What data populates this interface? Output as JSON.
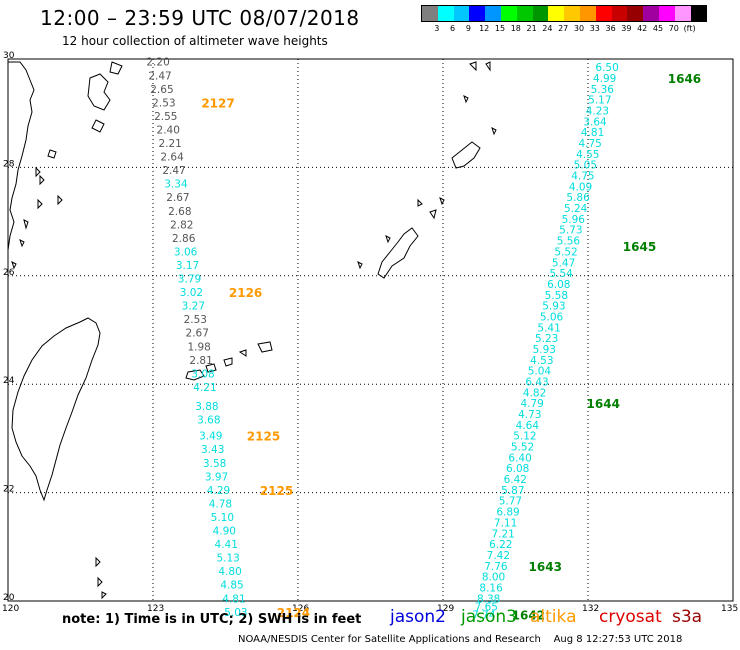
{
  "title": "12:00 – 23:59 UTC 08/07/2018",
  "subtitle": "12 hour collection of altimeter wave heights",
  "legend": {
    "unit": "(ft)",
    "colors": [
      "#7f7f7f",
      "#00ffff",
      "#00c8ff",
      "#0000ff",
      "#0096ff",
      "#00ff00",
      "#00c800",
      "#009600",
      "#ffff00",
      "#ffc800",
      "#ff9600",
      "#ff0000",
      "#c80000",
      "#960000",
      "#a000a0",
      "#ff00ff",
      "#ff96ff",
      "#000000"
    ],
    "ticks": [
      "3",
      "6",
      "9",
      "12",
      "15",
      "18",
      "21",
      "24",
      "27",
      "30",
      "33",
      "36",
      "39",
      "42",
      "45",
      "70"
    ]
  },
  "axes": {
    "lon_ticks": [
      "120",
      "123",
      "126",
      "129",
      "132",
      "135"
    ],
    "lat_ticks": [
      "30",
      "28",
      "26",
      "24",
      "22",
      "20"
    ]
  },
  "colors": {
    "gray": "#555555",
    "cyan": "#00dddd",
    "orange": "#ff9900",
    "green": "#007f00"
  },
  "track_a": {
    "points": [
      {
        "lon": 123.07,
        "lat": 29.95,
        "v": "2.20",
        "c": "gray"
      },
      {
        "lon": 123.11,
        "lat": 29.7,
        "v": "2.47",
        "c": "gray"
      },
      {
        "lon": 123.15,
        "lat": 29.45,
        "v": "2.65",
        "c": "gray"
      },
      {
        "lon": 123.19,
        "lat": 29.2,
        "v": "2.53",
        "c": "gray"
      },
      {
        "lon": 123.23,
        "lat": 28.95,
        "v": "2.55",
        "c": "gray"
      },
      {
        "lon": 123.28,
        "lat": 28.7,
        "v": "2.40",
        "c": "gray"
      },
      {
        "lon": 123.32,
        "lat": 28.45,
        "v": "2.21",
        "c": "gray"
      },
      {
        "lon": 123.36,
        "lat": 28.2,
        "v": "2.64",
        "c": "gray"
      },
      {
        "lon": 123.4,
        "lat": 27.95,
        "v": "2.47",
        "c": "gray"
      },
      {
        "lon": 123.44,
        "lat": 27.7,
        "v": "3.34",
        "c": "cyan"
      },
      {
        "lon": 123.48,
        "lat": 27.45,
        "v": "2.67",
        "c": "gray"
      },
      {
        "lon": 123.52,
        "lat": 27.2,
        "v": "2.68",
        "c": "gray"
      },
      {
        "lon": 123.56,
        "lat": 26.95,
        "v": "2.82",
        "c": "gray"
      },
      {
        "lon": 123.6,
        "lat": 26.7,
        "v": "2.86",
        "c": "gray"
      },
      {
        "lon": 123.64,
        "lat": 26.45,
        "v": "3.06",
        "c": "cyan"
      },
      {
        "lon": 123.68,
        "lat": 26.2,
        "v": "3.17",
        "c": "cyan"
      },
      {
        "lon": 123.72,
        "lat": 25.95,
        "v": "3.79",
        "c": "cyan"
      },
      {
        "lon": 123.76,
        "lat": 25.7,
        "v": "3.02",
        "c": "cyan"
      },
      {
        "lon": 123.8,
        "lat": 25.45,
        "v": "3.27",
        "c": "cyan"
      },
      {
        "lon": 123.84,
        "lat": 25.2,
        "v": "2.53",
        "c": "gray"
      },
      {
        "lon": 123.88,
        "lat": 24.95,
        "v": "2.67",
        "c": "gray"
      },
      {
        "lon": 123.92,
        "lat": 24.7,
        "v": "1.98",
        "c": "gray"
      },
      {
        "lon": 123.96,
        "lat": 24.45,
        "v": "2.81",
        "c": "gray"
      },
      {
        "lon": 124.0,
        "lat": 24.2,
        "v": "3.08",
        "c": "cyan"
      },
      {
        "lon": 124.04,
        "lat": 23.95,
        "v": "4.21",
        "c": "cyan"
      },
      {
        "lon": 124.08,
        "lat": 23.6,
        "v": "3.88",
        "c": "cyan"
      },
      {
        "lon": 124.12,
        "lat": 23.35,
        "v": "3.68",
        "c": "cyan"
      },
      {
        "lon": 124.16,
        "lat": 23.05,
        "v": "3.49",
        "c": "cyan"
      },
      {
        "lon": 124.2,
        "lat": 22.8,
        "v": "3.43",
        "c": "cyan"
      },
      {
        "lon": 124.24,
        "lat": 22.55,
        "v": "3.58",
        "c": "cyan"
      },
      {
        "lon": 124.28,
        "lat": 22.3,
        "v": "3.97",
        "c": "cyan"
      },
      {
        "lon": 124.32,
        "lat": 22.05,
        "v": "4.29",
        "c": "cyan"
      },
      {
        "lon": 124.36,
        "lat": 21.8,
        "v": "4.78",
        "c": "cyan"
      },
      {
        "lon": 124.4,
        "lat": 21.55,
        "v": "5.10",
        "c": "cyan"
      },
      {
        "lon": 124.44,
        "lat": 21.3,
        "v": "4.90",
        "c": "cyan"
      },
      {
        "lon": 124.48,
        "lat": 21.05,
        "v": "4.41",
        "c": "cyan"
      },
      {
        "lon": 124.52,
        "lat": 20.8,
        "v": "5.13",
        "c": "cyan"
      },
      {
        "lon": 124.56,
        "lat": 20.55,
        "v": "4.80",
        "c": "cyan"
      },
      {
        "lon": 124.6,
        "lat": 20.3,
        "v": "4.85",
        "c": "cyan"
      },
      {
        "lon": 124.64,
        "lat": 20.05,
        "v": "4.81",
        "c": "cyan"
      },
      {
        "lon": 124.68,
        "lat": 19.8,
        "v": "5.03",
        "c": "cyan"
      }
    ],
    "times": [
      {
        "lon": 124.0,
        "lat": 29.2,
        "t": "2127"
      },
      {
        "lon": 124.57,
        "lat": 25.7,
        "t": "2126"
      },
      {
        "lon": 124.94,
        "lat": 23.05,
        "t": "2125"
      },
      {
        "lon": 125.21,
        "lat": 22.05,
        "t": "2125"
      },
      {
        "lon": 125.56,
        "lat": 19.8,
        "t": "2124"
      }
    ]
  },
  "track_b": {
    "points": [
      {
        "lon": 132.36,
        "lat": 29.85,
        "v": "6.50"
      },
      {
        "lon": 132.31,
        "lat": 29.65,
        "v": "4.99"
      },
      {
        "lon": 132.26,
        "lat": 29.45,
        "v": "5.36"
      },
      {
        "lon": 132.21,
        "lat": 29.25,
        "v": "5.17"
      },
      {
        "lon": 132.16,
        "lat": 29.05,
        "v": "4.23"
      },
      {
        "lon": 132.11,
        "lat": 28.85,
        "v": "3.64"
      },
      {
        "lon": 132.06,
        "lat": 28.65,
        "v": "4.81"
      },
      {
        "lon": 132.01,
        "lat": 28.45,
        "v": "4.75"
      },
      {
        "lon": 131.96,
        "lat": 28.25,
        "v": "4.55"
      },
      {
        "lon": 131.91,
        "lat": 28.05,
        "v": "5.05"
      },
      {
        "lon": 131.86,
        "lat": 27.85,
        "v": "4.75"
      },
      {
        "lon": 131.81,
        "lat": 27.65,
        "v": "4.09"
      },
      {
        "lon": 131.76,
        "lat": 27.45,
        "v": "5.86"
      },
      {
        "lon": 131.71,
        "lat": 27.25,
        "v": "5.24"
      },
      {
        "lon": 131.66,
        "lat": 27.05,
        "v": "5.96"
      },
      {
        "lon": 131.61,
        "lat": 26.85,
        "v": "5.73"
      },
      {
        "lon": 131.56,
        "lat": 26.65,
        "v": "5.56"
      },
      {
        "lon": 131.51,
        "lat": 26.45,
        "v": "5.52"
      },
      {
        "lon": 131.46,
        "lat": 26.25,
        "v": "5.47"
      },
      {
        "lon": 131.41,
        "lat": 26.05,
        "v": "5.54"
      },
      {
        "lon": 131.36,
        "lat": 25.85,
        "v": "6.08"
      },
      {
        "lon": 131.31,
        "lat": 25.65,
        "v": "5.58"
      },
      {
        "lon": 131.26,
        "lat": 25.45,
        "v": "5.93"
      },
      {
        "lon": 131.21,
        "lat": 25.25,
        "v": "5.06"
      },
      {
        "lon": 131.16,
        "lat": 25.05,
        "v": "5.41"
      },
      {
        "lon": 131.11,
        "lat": 24.85,
        "v": "5.23"
      },
      {
        "lon": 131.06,
        "lat": 24.65,
        "v": "5.93"
      },
      {
        "lon": 131.01,
        "lat": 24.45,
        "v": "4.53"
      },
      {
        "lon": 130.96,
        "lat": 24.25,
        "v": "5.04"
      },
      {
        "lon": 130.91,
        "lat": 24.05,
        "v": "6.43"
      },
      {
        "lon": 130.86,
        "lat": 23.85,
        "v": "4.82"
      },
      {
        "lon": 130.81,
        "lat": 23.65,
        "v": "4.79"
      },
      {
        "lon": 130.76,
        "lat": 23.45,
        "v": "4.73"
      },
      {
        "lon": 130.71,
        "lat": 23.25,
        "v": "4.64"
      },
      {
        "lon": 130.66,
        "lat": 23.05,
        "v": "5.12"
      },
      {
        "lon": 130.61,
        "lat": 22.85,
        "v": "5.52"
      },
      {
        "lon": 130.56,
        "lat": 22.65,
        "v": "6.40"
      },
      {
        "lon": 130.51,
        "lat": 22.45,
        "v": "6.08"
      },
      {
        "lon": 130.46,
        "lat": 22.25,
        "v": "6.42"
      },
      {
        "lon": 130.41,
        "lat": 22.05,
        "v": "5.87"
      },
      {
        "lon": 130.36,
        "lat": 21.85,
        "v": "5.77"
      },
      {
        "lon": 130.31,
        "lat": 21.65,
        "v": "6.89"
      },
      {
        "lon": 130.26,
        "lat": 21.45,
        "v": "7.11"
      },
      {
        "lon": 130.21,
        "lat": 21.25,
        "v": "7.21"
      },
      {
        "lon": 130.16,
        "lat": 21.05,
        "v": "6.22"
      },
      {
        "lon": 130.11,
        "lat": 20.85,
        "v": "7.42"
      },
      {
        "lon": 130.06,
        "lat": 20.65,
        "v": "7.76"
      },
      {
        "lon": 130.01,
        "lat": 20.45,
        "v": "8.00"
      },
      {
        "lon": 129.96,
        "lat": 20.25,
        "v": "8.16"
      },
      {
        "lon": 129.91,
        "lat": 20.05,
        "v": "8.38"
      },
      {
        "lon": 129.86,
        "lat": 19.9,
        "v": "7.65"
      },
      {
        "lon": 129.81,
        "lat": 19.75,
        "v": "7.74"
      }
    ],
    "times": [
      {
        "lon": 133.65,
        "lat": 29.65,
        "t": "1646"
      },
      {
        "lon": 132.72,
        "lat": 26.55,
        "t": "1645"
      },
      {
        "lon": 131.97,
        "lat": 23.65,
        "t": "1644"
      },
      {
        "lon": 130.77,
        "lat": 20.65,
        "t": "1643"
      },
      {
        "lon": 130.42,
        "lat": 19.75,
        "t": "1642"
      }
    ]
  },
  "footer": {
    "note": "note: 1) Time is in UTC; 2) SWH is in feet",
    "missions": [
      {
        "name": "jason2",
        "color": "#0000dd",
        "left": 390
      },
      {
        "name": "jason3",
        "color": "#009900",
        "left": 461
      },
      {
        "name": "altika",
        "color": "#ff9900",
        "left": 530
      },
      {
        "name": "cryosat",
        "color": "#dd0000",
        "left": 599
      },
      {
        "name": "s3a",
        "color": "#990000",
        "left": 672
      }
    ],
    "credit": "NOAA/NESDIS Center for Satellite Applications and Research",
    "timestamp": "Aug  8 12:27:53 UTC 2018"
  }
}
